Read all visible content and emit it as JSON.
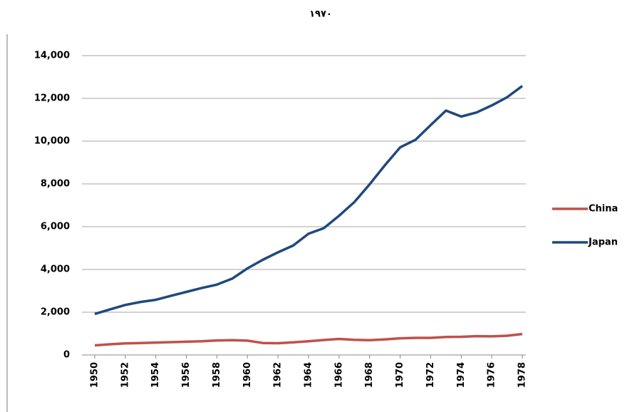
{
  "chart_data": {
    "type": "line",
    "title": "۱۹۷۰",
    "x": [
      1950,
      1951,
      1952,
      1953,
      1954,
      1955,
      1956,
      1957,
      1958,
      1959,
      1960,
      1961,
      1962,
      1963,
      1964,
      1965,
      1966,
      1967,
      1968,
      1969,
      1970,
      1971,
      1972,
      1973,
      1974,
      1975,
      1976,
      1977,
      1978
    ],
    "xlim": [
      1950,
      1978
    ],
    "xticks": [
      1950,
      1952,
      1954,
      1956,
      1958,
      1960,
      1962,
      1964,
      1966,
      1968,
      1970,
      1972,
      1974,
      1976,
      1978
    ],
    "ylim": [
      0,
      14000
    ],
    "yticks": [
      0,
      {
        "value": 2000,
        "label": "2,000"
      },
      {
        "value": 4000,
        "label": "4,000"
      },
      {
        "value": 6000,
        "label": "6,000"
      },
      {
        "value": 8000,
        "label": "8,000"
      },
      {
        "value": 10000,
        "label": "10,000"
      },
      {
        "value": 12000,
        "label": "12,000"
      },
      {
        "value": 14000,
        "label": "14,000"
      }
    ],
    "grid": true,
    "legend": "right",
    "series": [
      {
        "name": "China",
        "color": "#c0504d",
        "values": [
          450,
          500,
          540,
          560,
          580,
          600,
          620,
          640,
          680,
          690,
          670,
          560,
          550,
          590,
          640,
          700,
          750,
          710,
          690,
          730,
          780,
          800,
          800,
          840,
          850,
          880,
          870,
          900,
          980
        ]
      },
      {
        "name": "Japan",
        "color": "#1f497d",
        "values": [
          1920,
          2130,
          2340,
          2480,
          2580,
          2770,
          2950,
          3130,
          3290,
          3570,
          4050,
          4450,
          4800,
          5120,
          5670,
          5930,
          6510,
          7150,
          7980,
          8870,
          9710,
          10060,
          10750,
          11430,
          11150,
          11340,
          11670,
          12050,
          12580
        ]
      }
    ]
  }
}
